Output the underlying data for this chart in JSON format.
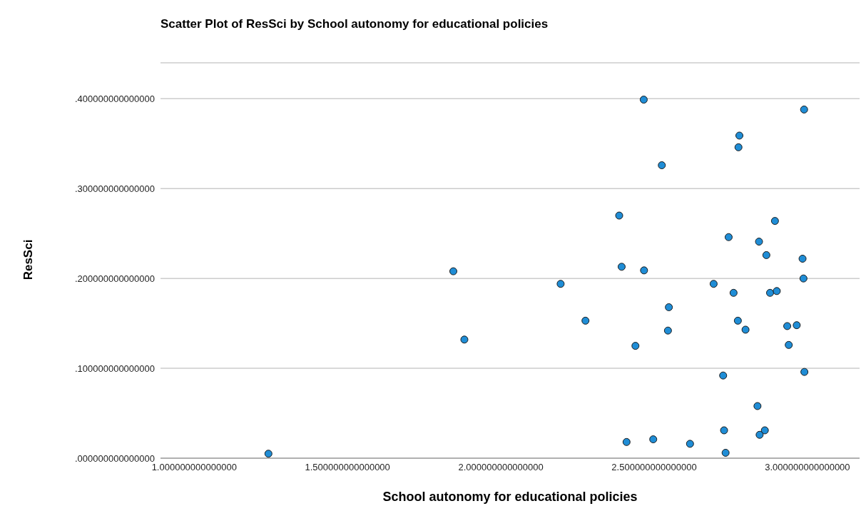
{
  "chart_data": {
    "type": "scatter",
    "title": "Scatter Plot of ResSci by School autonomy for educational policies",
    "xlabel": "School autonomy for educational policies",
    "ylabel": "ResSci",
    "x": [
      2.466,
      2.989,
      2.778,
      2.775,
      2.525,
      2.386,
      2.894,
      2.743,
      2.842,
      2.866,
      2.984,
      1.845,
      2.394,
      2.467,
      2.987,
      2.195,
      2.694,
      2.759,
      2.878,
      2.9,
      2.548,
      2.276,
      2.773,
      2.798,
      2.545,
      2.934,
      2.965,
      1.881,
      2.439,
      2.939,
      2.725,
      2.99,
      2.837,
      2.728,
      2.861,
      2.844,
      2.41,
      2.497,
      2.617,
      2.733,
      1.242
    ],
    "values": [
      0.399,
      0.388,
      0.359,
      0.346,
      0.326,
      0.27,
      0.264,
      0.246,
      0.241,
      0.226,
      0.222,
      0.208,
      0.213,
      0.209,
      0.2,
      0.194,
      0.194,
      0.184,
      0.184,
      0.186,
      0.168,
      0.153,
      0.153,
      0.143,
      0.142,
      0.147,
      0.148,
      0.132,
      0.125,
      0.126,
      0.092,
      0.096,
      0.058,
      0.031,
      0.031,
      0.026,
      0.018,
      0.021,
      0.016,
      0.006,
      0.005
    ],
    "color": "#1f8dd6",
    "marker": "circle",
    "grid": "y",
    "xlim": [
      0.89,
      3.17
    ],
    "xticks": [
      {
        "value": 1,
        "label": "1.000000000000000"
      },
      {
        "value": 1.5,
        "label": "1.500000000000000"
      },
      {
        "value": 2,
        "label": "2.000000000000000"
      },
      {
        "value": 2.5,
        "label": "2.500000000000000"
      },
      {
        "value": 3,
        "label": "3.000000000000000"
      }
    ],
    "ylim": [
      0,
      0.44
    ],
    "yticks": [
      {
        "value": 0,
        "label": ".000000000000000"
      },
      {
        "value": 0.1,
        "label": ".100000000000000"
      },
      {
        "value": 0.2,
        "label": ".200000000000000"
      },
      {
        "value": 0.3,
        "label": ".300000000000000"
      },
      {
        "value": 0.4,
        "label": ".400000000000000"
      }
    ]
  }
}
